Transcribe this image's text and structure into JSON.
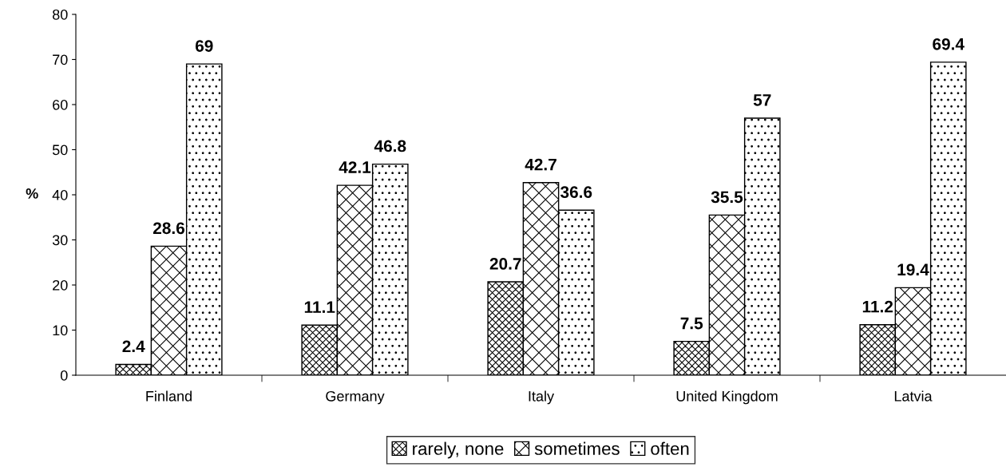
{
  "chart_data": {
    "type": "bar",
    "ylabel": "%",
    "categories": [
      "Finland",
      "Germany",
      "Italy",
      "United Kingdom",
      "Latvia"
    ],
    "series": [
      {
        "name": "rarely, none",
        "color": "#000000",
        "values": [
          2.4,
          11.1,
          20.7,
          7.5,
          11.2
        ]
      },
      {
        "name": "sometimes",
        "color": "#000000",
        "values": [
          28.6,
          42.1,
          42.7,
          35.5,
          19.4
        ]
      },
      {
        "name": "often",
        "color": "#000000",
        "values": [
          69,
          46.8,
          36.6,
          57,
          69.4
        ]
      }
    ],
    "ylim": [
      0,
      80
    ],
    "yticks": [
      0,
      10,
      20,
      30,
      40,
      50,
      60,
      70,
      80
    ],
    "grid": false,
    "legend": "bottom",
    "data_labels": true
  }
}
